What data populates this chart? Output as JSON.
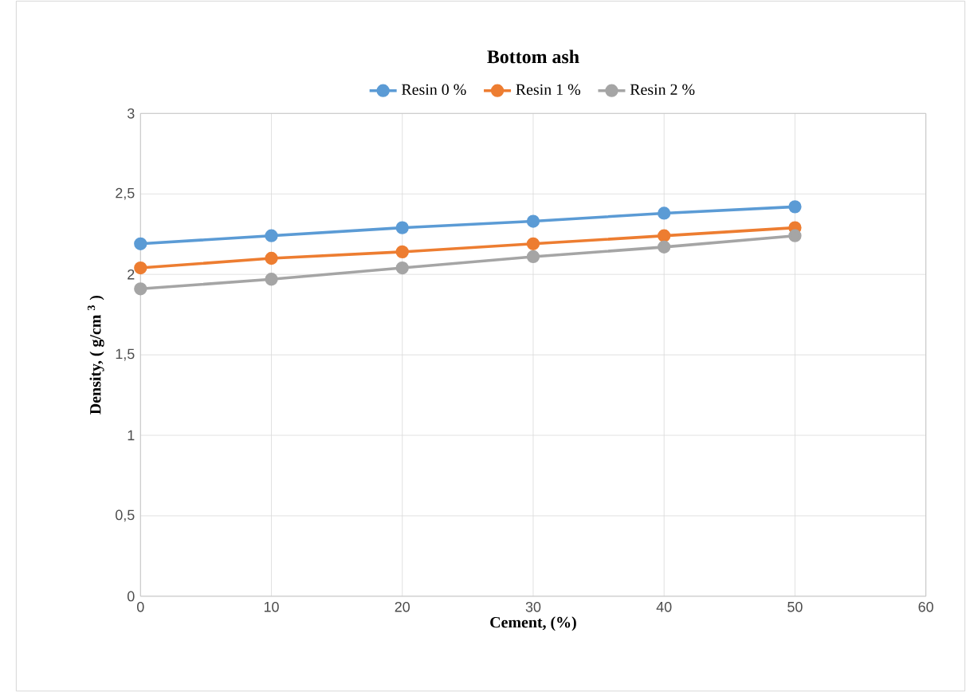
{
  "chart_data": {
    "type": "line",
    "title": "Bottom ash",
    "xlabel": "Cement, (%)",
    "ylabel": "Density, ( g/cm $^{3}$ )",
    "x": [
      0,
      10,
      20,
      30,
      40,
      50
    ],
    "series": [
      {
        "name": "Resin 0 %",
        "color": "#5b9bd5",
        "values": [
          2.19,
          2.24,
          2.29,
          2.33,
          2.38,
          2.42
        ]
      },
      {
        "name": "Resin 1 %",
        "color": "#ed7d31",
        "values": [
          2.04,
          2.1,
          2.14,
          2.19,
          2.24,
          2.29
        ]
      },
      {
        "name": "Resin 2 %",
        "color": "#a5a5a5",
        "values": [
          1.91,
          1.97,
          2.04,
          2.11,
          2.17,
          2.24
        ]
      }
    ],
    "xlim": [
      0,
      60
    ],
    "xticks": [
      0,
      10,
      20,
      30,
      40,
      50,
      60
    ],
    "ylim": [
      0,
      3
    ],
    "yticks": [
      0,
      {
        "value": 0.5,
        "label": "0,5"
      },
      1,
      {
        "value": 1.5,
        "label": "1,5"
      },
      2,
      {
        "value": 2.5,
        "label": "2,5"
      },
      3
    ],
    "grid": true,
    "legend": "top",
    "marker": "circle",
    "line_style": "solid"
  }
}
